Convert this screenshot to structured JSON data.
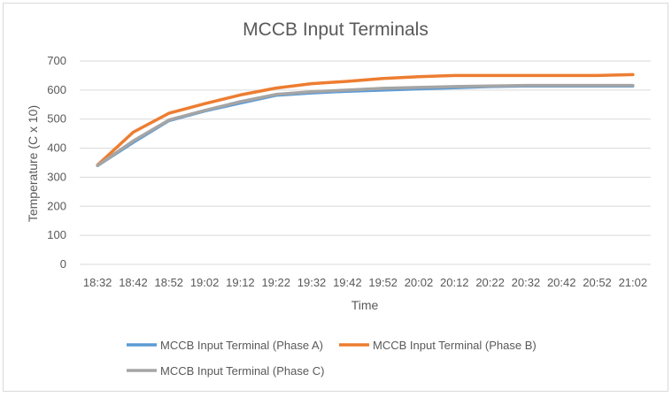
{
  "chart_data": {
    "type": "line",
    "title": "MCCB Input Terminals",
    "xlabel": "Time",
    "ylabel": "Temperature (C x 10)",
    "ylim": [
      0,
      700
    ],
    "yticks": [
      0,
      100,
      200,
      300,
      400,
      500,
      600,
      700
    ],
    "grid": true,
    "legend_position": "bottom",
    "categories": [
      "18:32",
      "18:42",
      "18:52",
      "19:02",
      "19:12",
      "19:22",
      "19:32",
      "19:42",
      "19:52",
      "20:02",
      "20:12",
      "20:22",
      "20:32",
      "20:42",
      "20:52",
      "21:02"
    ],
    "series": [
      {
        "name": "MCCB Input Terminal (Phase A)",
        "color": "#5b9bd5",
        "values": [
          340,
          420,
          495,
          528,
          555,
          582,
          590,
          596,
          600,
          604,
          608,
          612,
          614,
          614,
          614,
          614
        ]
      },
      {
        "name": "MCCB Input Terminal (Phase B)",
        "color": "#ed7d31",
        "values": [
          342,
          455,
          520,
          553,
          583,
          607,
          622,
          630,
          640,
          646,
          650,
          650,
          650,
          650,
          650,
          653
        ]
      },
      {
        "name": "MCCB Input Terminal (Phase C)",
        "color": "#a5a5a5",
        "values": [
          340,
          425,
          497,
          530,
          560,
          585,
          594,
          600,
          606,
          609,
          612,
          614,
          616,
          616,
          616,
          616
        ]
      }
    ]
  }
}
